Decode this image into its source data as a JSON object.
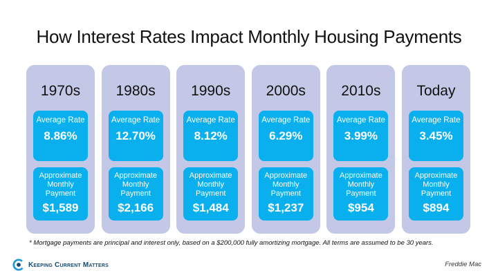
{
  "title": "How Interest Rates Impact Monthly Housing Payments",
  "columns": [
    {
      "decade": "1970s",
      "rate_label": "Average Rate",
      "rate": "8.86%",
      "payment_label": "Approximate Monthly Payment",
      "payment": "$1,589"
    },
    {
      "decade": "1980s",
      "rate_label": "Average Rate",
      "rate": "12.70%",
      "payment_label": "Approximate Monthly Payment",
      "payment": "$2,166"
    },
    {
      "decade": "1990s",
      "rate_label": "Average Rate",
      "rate": "8.12%",
      "payment_label": "Approximate Monthly Payment",
      "payment": "$1,484"
    },
    {
      "decade": "2000s",
      "rate_label": "Average Rate",
      "rate": "6.29%",
      "payment_label": "Approximate Monthly Payment",
      "payment": "$1,237"
    },
    {
      "decade": "2010s",
      "rate_label": "Average Rate",
      "rate": "3.99%",
      "payment_label": "Approximate Monthly Payment",
      "payment": "$954"
    },
    {
      "decade": "Today",
      "rate_label": "Average Rate",
      "rate": "3.45%",
      "payment_label": "Approximate Monthly Payment",
      "payment": "$894"
    }
  ],
  "footnote": "* Mortgage payments are principal and interest only, based on a $200,000 fully amortizing mortgage. All terms are assumed to be 30 years.",
  "logo": {
    "text": "Keeping Current Matters",
    "icon": "kcm-logo-icon"
  },
  "source": "Freddie Mac",
  "colors": {
    "column_bg": "#c3c8e6",
    "box_bg": "#0ab0ee",
    "logo_text": "#134a73"
  }
}
